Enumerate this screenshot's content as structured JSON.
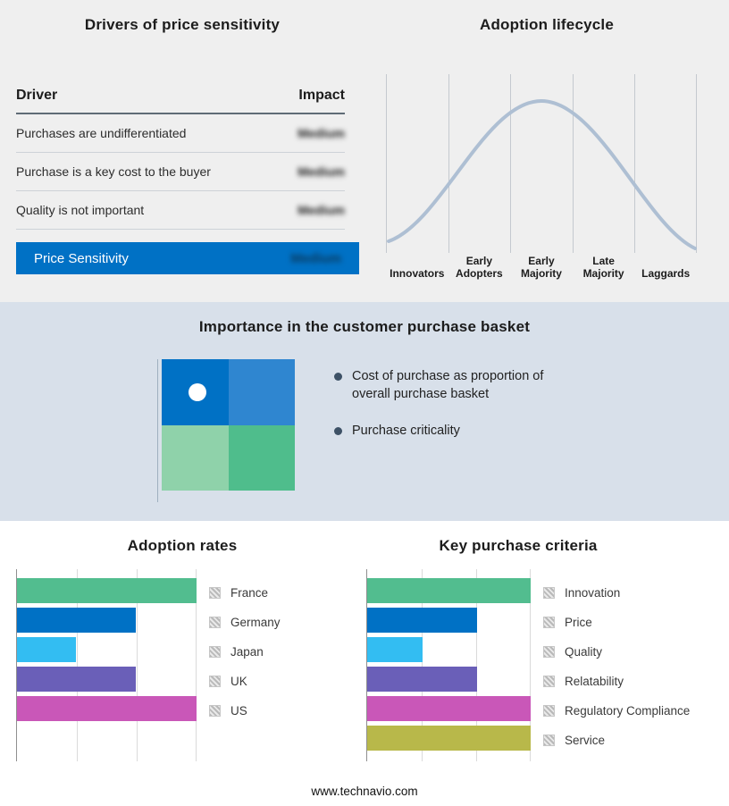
{
  "colors": {
    "accent_blue": "#0071c5",
    "section_top_bg": "#efefef",
    "section_mid_bg": "#d8e0ea"
  },
  "drivers_panel": {
    "title": "Drivers of price sensitivity",
    "header": {
      "driver": "Driver",
      "impact": "Impact"
    },
    "rows": [
      {
        "driver": "Purchases are undifferentiated",
        "impact": "Medium"
      },
      {
        "driver": "Purchase is a key cost to the buyer",
        "impact": "Medium"
      },
      {
        "driver": "Quality is not important",
        "impact": "Medium"
      }
    ],
    "highlight": {
      "label": "Price Sensitivity",
      "impact": "Medium"
    }
  },
  "basket_panel": {
    "title": "Importance in the customer purchase basket",
    "bullets": [
      "Cost of purchase as proportion of overall purchase basket",
      "Purchase criticality"
    ],
    "matrix_colors": [
      "#0071c5",
      "#2f86d0",
      "#8fd2aa",
      "#4fbd8c"
    ]
  },
  "footer": {
    "site": "www.technavio.com"
  },
  "chart_data": [
    {
      "name": "adoption-lifecycle",
      "type": "line",
      "title": "Adoption lifecycle",
      "categories": [
        "Innovators",
        "Early Adopters",
        "Early Majority",
        "Late Majority",
        "Laggards"
      ],
      "shape": "bell curve rising from Innovators, peaking at Early Majority, falling to Laggards",
      "line_color": "#aebfd3",
      "grid": "vertical separators between the five stages, no y-axis values shown"
    },
    {
      "name": "adoption-rates",
      "type": "bar",
      "orientation": "horizontal",
      "title": "Adoption rates",
      "categories": [
        "France",
        "Germany",
        "Japan",
        "UK",
        "US"
      ],
      "values_pct": [
        100,
        66,
        33,
        66,
        100
      ],
      "colors": [
        "#52bd8f",
        "#0071c5",
        "#33bdf2",
        "#6a5fb8",
        "#c957b8"
      ],
      "xlim": [
        0,
        100
      ],
      "gridlines_pct": [
        33.3,
        66.6,
        100
      ],
      "legend_position": "right",
      "note_axis": "no numeric axis labels shown"
    },
    {
      "name": "key-purchase-criteria",
      "type": "bar",
      "orientation": "horizontal",
      "title": "Key purchase criteria",
      "categories": [
        "Innovation",
        "Price",
        "Quality",
        "Relatability",
        "Regulatory Compliance",
        "Service"
      ],
      "values_pct": [
        100,
        67,
        34,
        67,
        100,
        100
      ],
      "colors": [
        "#52bd8f",
        "#0071c5",
        "#33bdf2",
        "#6a5fb8",
        "#c957b8",
        "#b8b84a"
      ],
      "xlim": [
        0,
        100
      ],
      "gridlines_pct": [
        33.3,
        66.6,
        100
      ],
      "legend_position": "right",
      "note_axis": "no numeric axis labels shown"
    }
  ]
}
